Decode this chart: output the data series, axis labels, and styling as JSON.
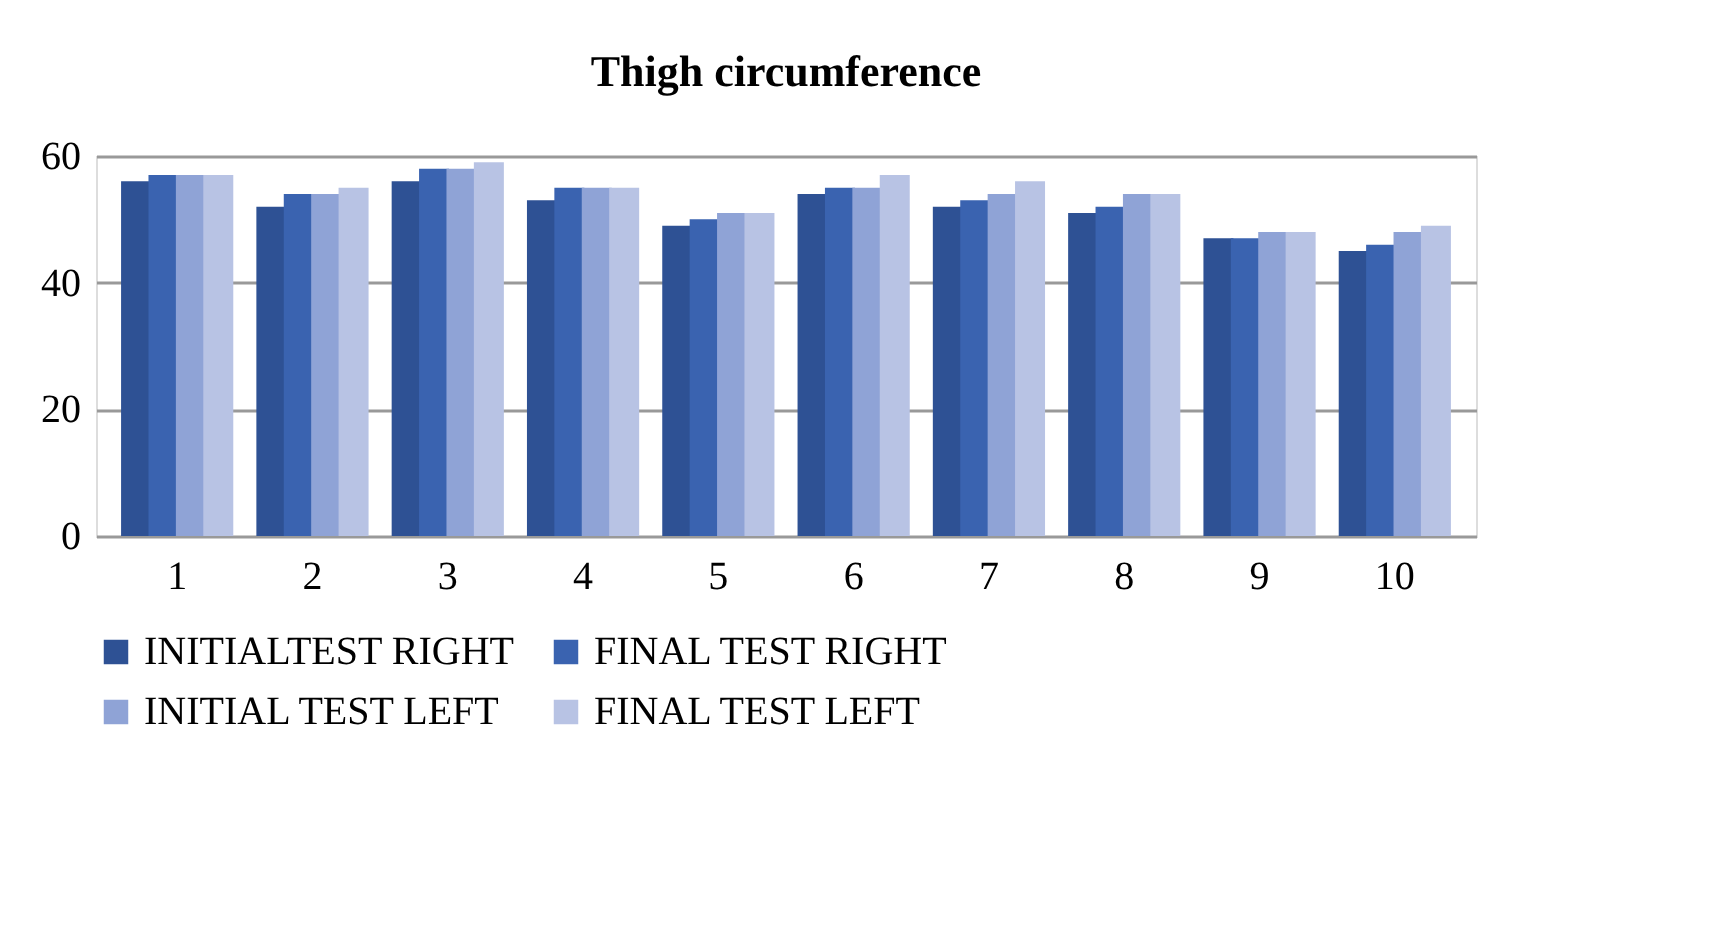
{
  "chart_data": {
    "type": "bar",
    "title": "Thigh circumference",
    "categories": [
      "1",
      "2",
      "3",
      "4",
      "5",
      "6",
      "7",
      "8",
      "9",
      "10"
    ],
    "series": [
      {
        "name": "INITIALTEST  RIGHT",
        "color": "#2e5194",
        "values": [
          56,
          52,
          56,
          53,
          49,
          54,
          52,
          51,
          47,
          45
        ]
      },
      {
        "name": "FINAL TEST  RIGHT",
        "color": "#3a63b0",
        "values": [
          57,
          54,
          58,
          55,
          50,
          55,
          53,
          52,
          47,
          46
        ]
      },
      {
        "name": "INITIAL TEST LEFT",
        "color": "#8fa3d6",
        "values": [
          57,
          54,
          58,
          55,
          51,
          55,
          54,
          54,
          48,
          48
        ]
      },
      {
        "name": "FINAL TEST LEFT",
        "color": "#b8c3e4",
        "values": [
          57,
          55,
          59,
          55,
          51,
          57,
          56,
          54,
          48,
          49
        ]
      }
    ],
    "ylim": [
      0,
      60
    ],
    "yticks": [
      0,
      20,
      40,
      60
    ],
    "grid": "y",
    "legend": "bottom"
  }
}
